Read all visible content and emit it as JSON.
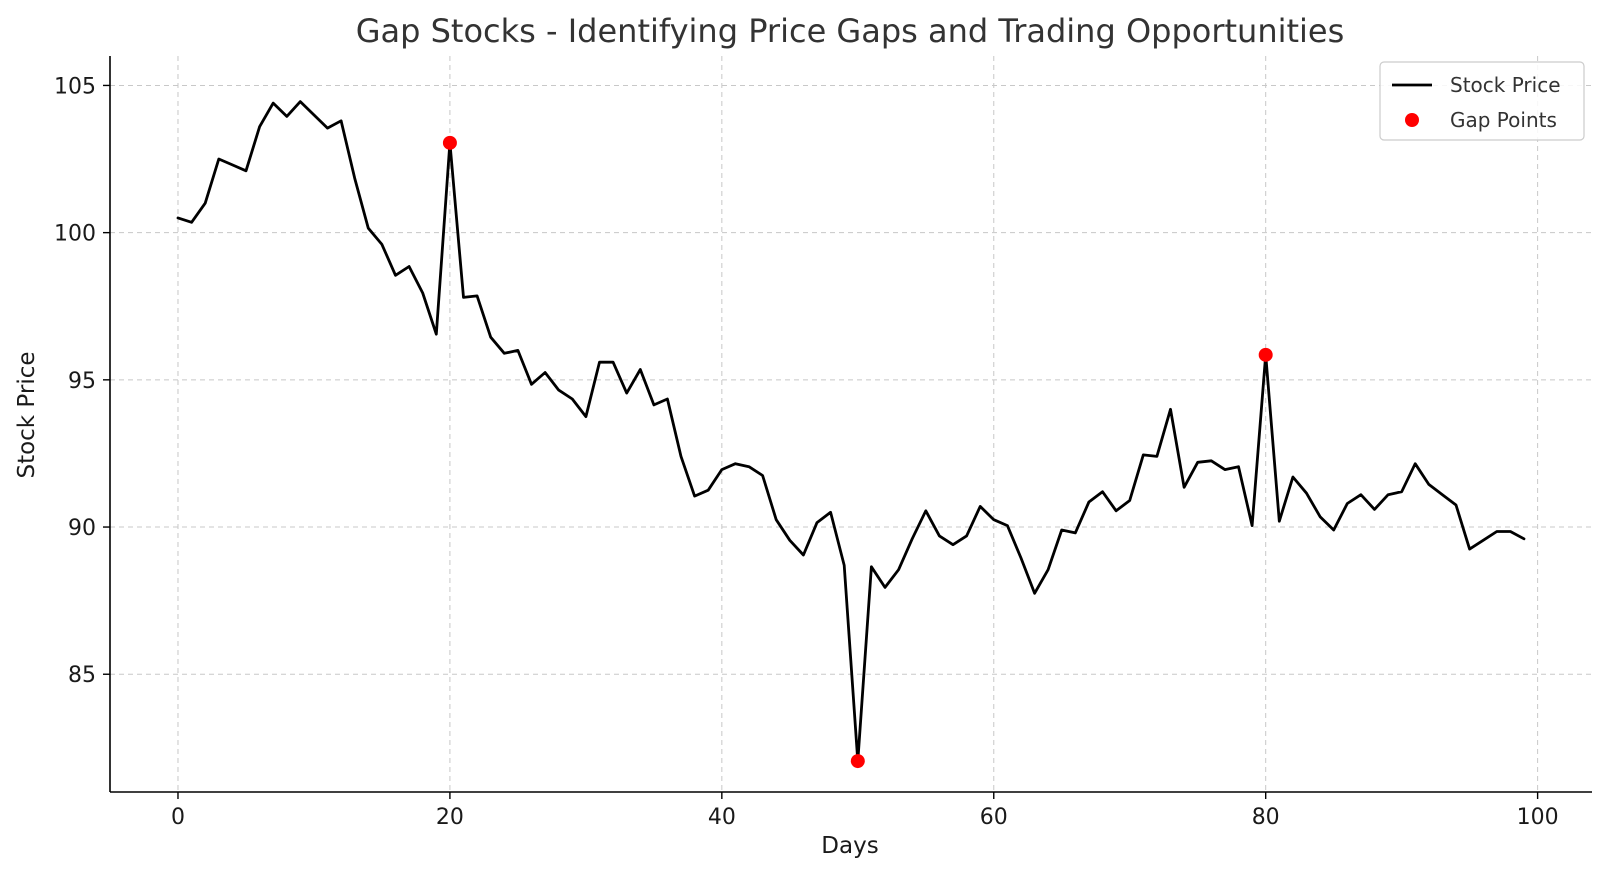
{
  "chart_data": {
    "type": "line",
    "title": "Gap Stocks - Identifying Price Gaps and Trading Opportunities",
    "xlabel": "Days",
    "ylabel": "Stock Price",
    "xlim": [
      -5,
      104
    ],
    "ylim": [
      81,
      106
    ],
    "xticks": [
      0,
      20,
      40,
      60,
      80,
      100
    ],
    "yticks": [
      85,
      90,
      95,
      100,
      105
    ],
    "grid": true,
    "legend_position": "top-right",
    "series": [
      {
        "name": "Stock Price",
        "kind": "line",
        "color": "#000000",
        "x": [
          0,
          1,
          2,
          3,
          4,
          5,
          6,
          7,
          8,
          9,
          10,
          11,
          12,
          13,
          14,
          15,
          16,
          17,
          18,
          19,
          20,
          21,
          22,
          23,
          24,
          25,
          26,
          27,
          28,
          29,
          30,
          31,
          32,
          33,
          34,
          35,
          36,
          37,
          38,
          39,
          40,
          41,
          42,
          43,
          44,
          45,
          46,
          47,
          48,
          49,
          50,
          51,
          52,
          53,
          54,
          55,
          56,
          57,
          58,
          59,
          60,
          61,
          62,
          63,
          64,
          65,
          66,
          67,
          68,
          69,
          70,
          71,
          72,
          73,
          74,
          75,
          76,
          77,
          78,
          79,
          80,
          81,
          82,
          83,
          84,
          85,
          86,
          87,
          88,
          89,
          90,
          91,
          92,
          93,
          94,
          95,
          96,
          97,
          98,
          99
        ],
        "y": [
          100.5,
          100.35,
          101.0,
          102.5,
          102.3,
          102.1,
          103.6,
          104.4,
          103.95,
          104.45,
          104.0,
          103.55,
          103.8,
          101.85,
          100.15,
          99.6,
          98.55,
          98.85,
          97.95,
          96.55,
          103.05,
          97.8,
          97.85,
          96.45,
          95.9,
          96.0,
          94.85,
          95.25,
          94.65,
          94.35,
          93.75,
          95.6,
          95.6,
          94.55,
          95.35,
          94.15,
          94.35,
          92.4,
          91.05,
          91.25,
          91.95,
          92.15,
          92.05,
          91.75,
          90.25,
          89.55,
          89.05,
          90.15,
          90.5,
          88.7,
          82.05,
          88.65,
          87.95,
          88.55,
          89.6,
          90.55,
          89.7,
          89.4,
          89.7,
          90.7,
          90.25,
          90.05,
          88.95,
          87.75,
          88.55,
          89.9,
          89.8,
          90.85,
          91.2,
          90.55,
          90.9,
          92.45,
          92.4,
          94.0,
          91.35,
          92.2,
          92.25,
          91.95,
          92.05,
          90.05,
          95.85,
          90.2,
          91.7,
          91.15,
          90.35,
          89.9,
          90.8,
          91.1,
          90.6,
          91.1,
          91.2,
          92.15,
          91.45,
          91.1,
          90.75,
          89.25,
          89.55,
          89.85,
          89.85,
          89.6
        ]
      },
      {
        "name": "Gap Points",
        "kind": "scatter",
        "color": "#ff0000",
        "x": [
          20,
          50,
          80
        ],
        "y": [
          103.05,
          82.05,
          95.85
        ]
      }
    ]
  }
}
